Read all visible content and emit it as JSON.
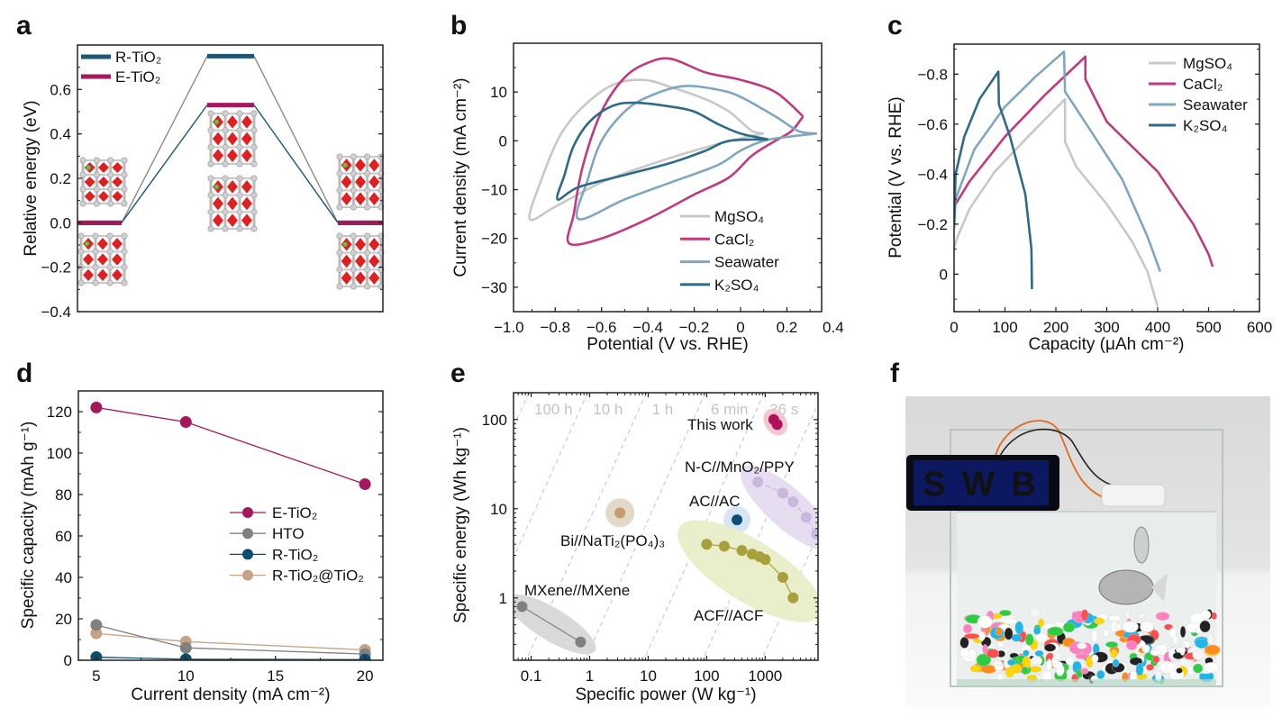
{
  "panel_labels": [
    "a",
    "b",
    "c",
    "d",
    "e",
    "f"
  ],
  "chart_data": [
    {
      "panel": "a",
      "type": "line",
      "ylabel": "Relative energy (eV)",
      "ylim": [
        -0.4,
        0.8
      ],
      "yticks": [
        0.6,
        0.4,
        0.2,
        0.0,
        -0.2,
        -0.4
      ],
      "ytick_labels": [
        "0.6",
        "0.4",
        "0.2",
        "0.0",
        "−0.2",
        "−0.4"
      ],
      "legend_position": "top-left",
      "series": [
        {
          "name": "R-TiO₂",
          "color": "#1d5775",
          "connector_color": "#8c8c80",
          "levels": [
            0,
            0.75,
            0
          ]
        },
        {
          "name": "E-TiO₂",
          "color": "#a3195b",
          "connector_color": "#1d5775",
          "levels": [
            0,
            0.53,
            0
          ]
        }
      ]
    },
    {
      "panel": "b",
      "type": "line",
      "xlabel": "Potential (V vs. RHE)",
      "ylabel": "Current density (mA cm⁻²)",
      "xlim": [
        -0.98,
        0.35
      ],
      "ylim": [
        -35,
        20
      ],
      "xticks": [
        -1.0,
        -0.8,
        -0.6,
        -0.4,
        -0.2,
        0,
        0.2,
        0.4
      ],
      "xtick_labels": [
        "−1.0",
        "−0.8",
        "−0.6",
        "−0.4",
        "−0.2",
        "0",
        "0.2",
        "0.4"
      ],
      "yticks": [
        10,
        0,
        -10,
        -20,
        -30
      ],
      "ytick_labels": [
        "10",
        "0",
        "−10",
        "−20",
        "−30"
      ],
      "legend_position": "bottom-right",
      "series": [
        {
          "name": "MgSO₄",
          "color": "#c8c8c8",
          "points": [
            [
              0.1,
              1.5
            ],
            [
              0.05,
              2
            ],
            [
              0,
              4
            ],
            [
              -0.05,
              6
            ],
            [
              -0.15,
              8.5
            ],
            [
              -0.3,
              11
            ],
            [
              -0.42,
              12.5
            ],
            [
              -0.55,
              11.5
            ],
            [
              -0.68,
              7
            ],
            [
              -0.78,
              1
            ],
            [
              -0.86,
              -8
            ],
            [
              -0.91,
              -16
            ],
            [
              -0.8,
              -13.5
            ],
            [
              -0.6,
              -8.5
            ],
            [
              -0.4,
              -5
            ],
            [
              -0.2,
              -2
            ],
            [
              0,
              0.5
            ],
            [
              0.1,
              1.5
            ]
          ]
        },
        {
          "name": "CaCl₂",
          "color": "#c03a7f",
          "points": [
            [
              0.27,
              5
            ],
            [
              0.15,
              10
            ],
            [
              0,
              12.5
            ],
            [
              -0.15,
              14
            ],
            [
              -0.3,
              16.8
            ],
            [
              -0.4,
              16
            ],
            [
              -0.5,
              13
            ],
            [
              -0.6,
              6
            ],
            [
              -0.68,
              -5
            ],
            [
              -0.72,
              -15
            ],
            [
              -0.74,
              -21
            ],
            [
              -0.6,
              -20
            ],
            [
              -0.4,
              -16
            ],
            [
              -0.2,
              -11
            ],
            [
              -0.05,
              -7.5
            ],
            [
              0.05,
              -3
            ],
            [
              0.15,
              0
            ],
            [
              0.22,
              2
            ],
            [
              0.27,
              5
            ]
          ]
        },
        {
          "name": "Seawater",
          "color": "#7fa8c0",
          "points": [
            [
              0.33,
              1.5
            ],
            [
              0.25,
              2
            ],
            [
              0.15,
              5
            ],
            [
              0,
              9
            ],
            [
              -0.1,
              10.5
            ],
            [
              -0.25,
              11.2
            ],
            [
              -0.4,
              9
            ],
            [
              -0.5,
              6
            ],
            [
              -0.6,
              0
            ],
            [
              -0.66,
              -8
            ],
            [
              -0.7,
              -16
            ],
            [
              -0.5,
              -12
            ],
            [
              -0.3,
              -8.5
            ],
            [
              -0.1,
              -5
            ],
            [
              0,
              -2
            ],
            [
              0.1,
              0
            ],
            [
              0.2,
              0.8
            ],
            [
              0.33,
              1.5
            ]
          ]
        },
        {
          "name": "K₂SO₄",
          "color": "#2e6a8a",
          "points": [
            [
              0.12,
              0.3
            ],
            [
              0,
              1.5
            ],
            [
              -0.1,
              3.5
            ],
            [
              -0.2,
              6
            ],
            [
              -0.3,
              7
            ],
            [
              -0.45,
              7.8
            ],
            [
              -0.55,
              7.2
            ],
            [
              -0.65,
              4
            ],
            [
              -0.72,
              -1
            ],
            [
              -0.76,
              -7
            ],
            [
              -0.79,
              -12
            ],
            [
              -0.7,
              -9.5
            ],
            [
              -0.5,
              -7
            ],
            [
              -0.3,
              -4.5
            ],
            [
              -0.15,
              -2
            ],
            [
              -0.05,
              0
            ],
            [
              0.12,
              0.3
            ]
          ]
        }
      ]
    },
    {
      "panel": "c",
      "type": "line",
      "xlabel": "Capacity (μAh cm⁻²)",
      "ylabel": "Potential (V vs. RHE)",
      "xlim": [
        0,
        600
      ],
      "ylim": [
        0.15,
        -0.92
      ],
      "y_inverted": true,
      "xticks": [
        0,
        100,
        200,
        300,
        400,
        500,
        600
      ],
      "xtick_labels": [
        "0",
        "100",
        "200",
        "300",
        "400",
        "500",
        "600"
      ],
      "yticks": [
        -0.8,
        -0.6,
        -0.4,
        -0.2,
        0
      ],
      "ytick_labels": [
        "−0.8",
        "−0.6",
        "−0.4",
        "−0.2",
        "0"
      ],
      "legend_position": "top-right",
      "series": [
        {
          "name": "MgSO₄",
          "color": "#c8c8c8",
          "points": [
            [
              0,
              -0.1
            ],
            [
              5,
              -0.14
            ],
            [
              30,
              -0.26
            ],
            [
              80,
              -0.41
            ],
            [
              150,
              -0.56
            ],
            [
              218,
              -0.7
            ],
            [
              218,
              -0.53
            ],
            [
              240,
              -0.43
            ],
            [
              300,
              -0.28
            ],
            [
              350,
              -0.13
            ],
            [
              380,
              -0.01
            ],
            [
              400,
              0.13
            ]
          ]
        },
        {
          "name": "CaCl₂",
          "color": "#c03a7f",
          "points": [
            [
              0,
              -0.27
            ],
            [
              30,
              -0.37
            ],
            [
              100,
              -0.55
            ],
            [
              180,
              -0.72
            ],
            [
              258,
              -0.87
            ],
            [
              258,
              -0.78
            ],
            [
              300,
              -0.61
            ],
            [
              400,
              -0.41
            ],
            [
              470,
              -0.2
            ],
            [
              500,
              -0.08
            ],
            [
              508,
              -0.03
            ]
          ]
        },
        {
          "name": "Seawater",
          "color": "#7fa8c0",
          "points": [
            [
              0,
              -0.18
            ],
            [
              3,
              -0.3
            ],
            [
              40,
              -0.5
            ],
            [
              100,
              -0.67
            ],
            [
              160,
              -0.79
            ],
            [
              216,
              -0.89
            ],
            [
              218,
              -0.73
            ],
            [
              260,
              -0.6
            ],
            [
              330,
              -0.38
            ],
            [
              380,
              -0.15
            ],
            [
              405,
              -0.01
            ]
          ]
        },
        {
          "name": "K₂SO₄",
          "color": "#2e6a8a",
          "points": [
            [
              0,
              -0.2
            ],
            [
              3,
              -0.4
            ],
            [
              20,
              -0.55
            ],
            [
              50,
              -0.7
            ],
            [
              87,
              -0.81
            ],
            [
              88,
              -0.68
            ],
            [
              110,
              -0.55
            ],
            [
              140,
              -0.32
            ],
            [
              152,
              -0.1
            ],
            [
              153,
              0.06
            ]
          ]
        }
      ]
    },
    {
      "panel": "d",
      "type": "line",
      "xlabel": "Current density (mA cm⁻²)",
      "ylabel": "Specific capacity (mAh g⁻¹)",
      "xlim": [
        4,
        21
      ],
      "ylim": [
        0,
        130
      ],
      "x": [
        5,
        10,
        20
      ],
      "xticks": [
        5,
        10,
        15,
        20
      ],
      "xtick_labels": [
        "5",
        "10",
        "15",
        "20"
      ],
      "yticks": [
        0,
        20,
        40,
        60,
        80,
        100,
        120
      ],
      "ytick_labels": [
        "0",
        "20",
        "40",
        "60",
        "80",
        "100",
        "120"
      ],
      "legend_position": "center-right",
      "series": [
        {
          "name": "E-TiO₂",
          "color": "#a3195b",
          "values": [
            122,
            115,
            85
          ]
        },
        {
          "name": "HTO",
          "color": "#808080",
          "values": [
            17,
            6,
            3
          ]
        },
        {
          "name": "R-TiO₂",
          "color": "#0d4d6e",
          "values": [
            1.5,
            0.5,
            0.3
          ]
        },
        {
          "name": "R-TiO₂@TiO₂",
          "color": "#c4a484",
          "values": [
            13,
            9,
            5
          ]
        }
      ]
    },
    {
      "panel": "e",
      "type": "scatter",
      "xlabel": "Specific power (W kg⁻¹)",
      "ylabel": "Specific energy (Wh kg⁻¹)",
      "xscale": "log",
      "yscale": "log",
      "xlim": [
        0.05,
        8000
      ],
      "ylim": [
        0.2,
        200
      ],
      "xticks": [
        0.1,
        1,
        10,
        100,
        1000
      ],
      "xtick_labels": [
        "0.1",
        "1",
        "10",
        "100",
        "1000"
      ],
      "yticks": [
        1,
        10,
        100
      ],
      "ytick_labels": [
        "1",
        "10",
        "100"
      ],
      "time_lines": [
        "100 h",
        "10 h",
        "1 h",
        "6 min",
        "36 s"
      ],
      "series": [
        {
          "name": "This work",
          "color": "#b0105a",
          "halo": "#f2c9cf",
          "points": [
            [
              1400,
              100
            ],
            [
              1600,
              88
            ]
          ]
        },
        {
          "name": "N-C//MnO₂/PPY",
          "color": "#c9b8dc",
          "halo": "#e6ddf0",
          "points": [
            [
              750,
              20
            ],
            [
              2000,
              15
            ],
            [
              3000,
              12
            ],
            [
              5000,
              8
            ],
            [
              7500,
              5.2
            ]
          ]
        },
        {
          "name": "AC//AC",
          "color": "#0d4d7a",
          "halo": "#d8e6f4",
          "points": [
            [
              330,
              7.5
            ]
          ]
        },
        {
          "name": "Bi//NaTi₂(PO₄)₃",
          "color": "#c89a70",
          "halo": "#e2d9c6",
          "points": [
            [
              3.3,
              9
            ]
          ]
        },
        {
          "name": "ACF//ACF",
          "color": "#a8a03a",
          "halo": "#e9eecb",
          "points": [
            [
              100,
              4
            ],
            [
              200,
              3.8
            ],
            [
              400,
              3.4
            ],
            [
              600,
              3.1
            ],
            [
              800,
              2.9
            ],
            [
              1000,
              2.7
            ],
            [
              2000,
              1.7
            ],
            [
              3000,
              1
            ]
          ]
        },
        {
          "name": "MXene//MXene",
          "color": "#808080",
          "halo": "#d9d9d9",
          "points": [
            [
              0.07,
              0.8
            ],
            [
              0.7,
              0.32
            ]
          ]
        }
      ]
    }
  ],
  "photo": {
    "led_text": "S W B",
    "led_color": "#3d6bff"
  }
}
